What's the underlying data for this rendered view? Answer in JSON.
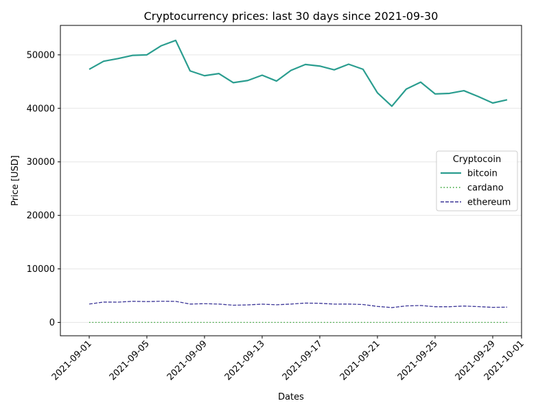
{
  "chart_data": {
    "type": "line",
    "title": "Cryptocurrency prices: last 30 days since 2021-09-30",
    "xlabel": "Dates",
    "ylabel": "Price [USD]",
    "ylim": [
      -2500,
      55500
    ],
    "xlim": [
      "2021-08-30",
      "2021-10-01"
    ],
    "grid": "horizontal",
    "legend": {
      "title": "Cryptocoin",
      "placement": "center-right"
    },
    "x": [
      "2021-09-01",
      "2021-09-02",
      "2021-09-03",
      "2021-09-04",
      "2021-09-05",
      "2021-09-06",
      "2021-09-07",
      "2021-09-08",
      "2021-09-09",
      "2021-09-10",
      "2021-09-11",
      "2021-09-12",
      "2021-09-13",
      "2021-09-14",
      "2021-09-15",
      "2021-09-16",
      "2021-09-17",
      "2021-09-18",
      "2021-09-19",
      "2021-09-20",
      "2021-09-21",
      "2021-09-22",
      "2021-09-23",
      "2021-09-24",
      "2021-09-25",
      "2021-09-26",
      "2021-09-27",
      "2021-09-28",
      "2021-09-29",
      "2021-09-30"
    ],
    "x_ticks": [
      "2021-09-01",
      "2021-09-05",
      "2021-09-09",
      "2021-09-13",
      "2021-09-17",
      "2021-09-21",
      "2021-09-25",
      "2021-09-29",
      "2021-10-01"
    ],
    "y_ticks": [
      0,
      10000,
      20000,
      30000,
      40000,
      50000
    ],
    "series": [
      {
        "name": "bitcoin",
        "color": "#2a9d8f",
        "style": "solid",
        "values": [
          47300,
          48800,
          49300,
          49900,
          50000,
          51700,
          52700,
          47000,
          46100,
          46500,
          44800,
          45200,
          46200,
          45100,
          47100,
          48200,
          47900,
          47200,
          48250,
          47300,
          42900,
          40400,
          43600,
          44900,
          42700,
          42800,
          43300,
          42200,
          41000,
          41600
        ]
      },
      {
        "name": "cardano",
        "color": "#2ca02c",
        "style": "dotted",
        "values": [
          2.9,
          2.9,
          2.8,
          2.8,
          2.9,
          2.9,
          2.6,
          2.5,
          2.5,
          2.6,
          2.7,
          2.6,
          2.5,
          2.4,
          2.5,
          2.5,
          2.4,
          2.4,
          2.4,
          2.3,
          2.2,
          2.1,
          2.3,
          2.3,
          2.2,
          2.2,
          2.2,
          2.1,
          2.1,
          2.1
        ]
      },
      {
        "name": "ethereum",
        "color": "#3b3597",
        "style": "dashed",
        "values": [
          3430,
          3800,
          3790,
          3940,
          3890,
          3950,
          3930,
          3430,
          3500,
          3430,
          3210,
          3270,
          3410,
          3290,
          3430,
          3610,
          3570,
          3420,
          3430,
          3340,
          2990,
          2770,
          3080,
          3160,
          2930,
          2930,
          3060,
          2950,
          2810,
          2850
        ]
      }
    ]
  }
}
